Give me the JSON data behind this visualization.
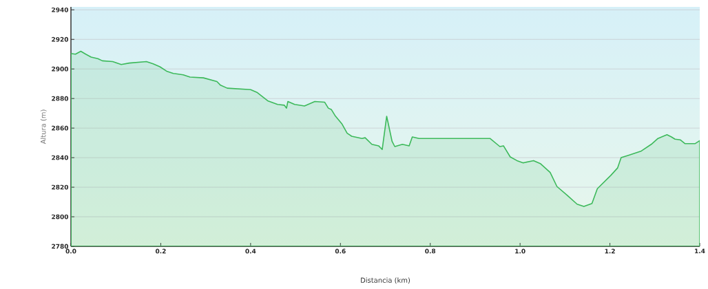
{
  "chart_data": {
    "type": "area",
    "xlabel": "Distancia   (km)",
    "ylabel": "Altura (m)",
    "x": [
      0,
      0.01,
      0.022,
      0.033,
      0.045,
      0.06,
      0.07,
      0.093,
      0.112,
      0.13,
      0.168,
      0.183,
      0.198,
      0.213,
      0.228,
      0.25,
      0.265,
      0.295,
      0.325,
      0.333,
      0.348,
      0.4,
      0.415,
      0.438,
      0.46,
      0.475,
      0.48,
      0.483,
      0.498,
      0.52,
      0.543,
      0.565,
      0.573,
      0.58,
      0.588,
      0.603,
      0.615,
      0.625,
      0.648,
      0.655,
      0.67,
      0.685,
      0.693,
      0.703,
      0.715,
      0.721,
      0.738,
      0.753,
      0.76,
      0.775,
      0.805,
      0.835,
      0.933,
      0.955,
      0.963,
      0.978,
      0.993,
      1.007,
      1.03,
      1.045,
      1.067,
      1.082,
      1.105,
      1.127,
      1.142,
      1.16,
      1.172,
      1.202,
      1.217,
      1.225,
      1.24,
      1.27,
      1.292,
      1.307,
      1.327,
      1.337,
      1.345,
      1.357,
      1.367,
      1.39,
      1.4
    ],
    "values": [
      2910.5,
      2910,
      2912,
      2910,
      2908,
      2907,
      2905.5,
      2905,
      2903,
      2904,
      2905,
      2903.5,
      2901.5,
      2898.5,
      2897,
      2896,
      2894.5,
      2894,
      2891.5,
      2889,
      2887,
      2886,
      2884,
      2878.5,
      2876,
      2875.5,
      2873.5,
      2878,
      2876,
      2875,
      2878,
      2877.5,
      2873.5,
      2872.5,
      2868.5,
      2863,
      2856.5,
      2854.5,
      2853,
      2853.5,
      2849,
      2848,
      2845.5,
      2868,
      2851,
      2847.5,
      2849,
      2848,
      2854,
      2853,
      2853,
      2853,
      2853,
      2847.5,
      2848,
      2840.5,
      2838,
      2836.5,
      2838,
      2836,
      2830,
      2820.5,
      2814.5,
      2808.5,
      2807,
      2809,
      2819,
      2828,
      2833,
      2840,
      2841.5,
      2844.5,
      2849,
      2853,
      2855.5,
      2854,
      2852.5,
      2852,
      2849.5,
      2849.5,
      2851.5
    ],
    "color": "#3cb95a",
    "xlim": [
      0,
      1.4
    ],
    "xticks": [
      {
        "value": 0,
        "label": "0.0"
      },
      0.2,
      0.4,
      0.6,
      0.8,
      {
        "value": 1,
        "label": "1.0"
      },
      1.2,
      1.4
    ],
    "ylim": [
      2780,
      2942
    ],
    "yticks": [
      2780,
      2800,
      2820,
      2840,
      2860,
      2880,
      2900,
      2920,
      2940
    ],
    "grid": "y"
  }
}
